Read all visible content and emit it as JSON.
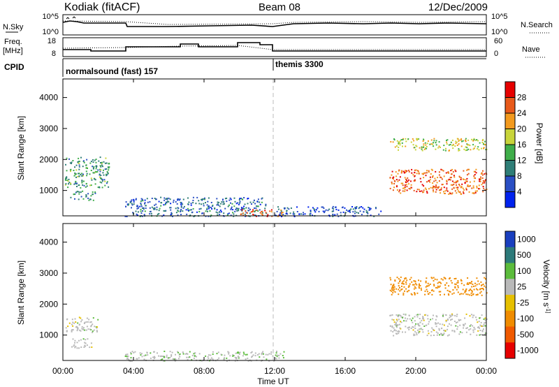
{
  "header": {
    "station": "Kodiak (fitACF)",
    "beam": "Beam 08",
    "date": "12/Dec/2009"
  },
  "noise_panel": {
    "left_label": "N.Sky",
    "right_label": "N.Search",
    "left_ticks": [
      "10^5",
      "10^0"
    ],
    "right_ticks": [
      "10^5",
      "10^0"
    ]
  },
  "freq_panel": {
    "left_label_1": "Freq.",
    "left_label_2": "[MHz]",
    "left_ticks": [
      "18",
      "8"
    ],
    "right_label": "Nave",
    "right_ticks": [
      "60",
      "0"
    ]
  },
  "cpid_panel": {
    "label": "CPID",
    "modes": [
      {
        "name": "normalsound (fast) 157",
        "start": "00:00"
      },
      {
        "name": "themis 3300",
        "start": "12:00"
      }
    ]
  },
  "x_axis": {
    "label": "Time UT",
    "ticks": [
      "00:00",
      "04:00",
      "08:00",
      "12:00",
      "16:00",
      "20:00",
      "00:00"
    ]
  },
  "y_axis": {
    "label": "Slant Range [km]",
    "ticks": [
      "1000",
      "2000",
      "3000",
      "4000"
    ]
  },
  "power_colorbar": {
    "label": "Power [dB]",
    "ticks": [
      "4",
      "8",
      "12",
      "16",
      "20",
      "24",
      "28"
    ],
    "colors": [
      "#0022ee",
      "#2a4fc4",
      "#2f7e77",
      "#3fae4a",
      "#c8d43a",
      "#f39a1e",
      "#e85a1a",
      "#e60000"
    ]
  },
  "velocity_colorbar": {
    "label": "Velocity [m s^-1]",
    "ticks": [
      "1000",
      "500",
      "100",
      "25",
      "-25",
      "-100",
      "-500",
      "-1000"
    ],
    "colors": [
      "#1a3fbf",
      "#2d7a7a",
      "#5cbc3c",
      "#b9b9b9",
      "#e6c000",
      "#f08c00",
      "#f05a00",
      "#e60000"
    ]
  },
  "chart_data": [
    {
      "type": "heatmap",
      "title": "",
      "xlabel": "Time UT",
      "ylabel": "Slant Range [km]",
      "colorbar_label": "Power [dB]",
      "xlim": [
        0,
        24
      ],
      "ylim": [
        180,
        4600
      ],
      "clim": [
        0,
        32
      ],
      "regions": [
        {
          "t": [
            0.1,
            2.6
          ],
          "range": [
            1100,
            2100
          ],
          "value_db": 12
        },
        {
          "t": [
            0.4,
            1.8
          ],
          "range": [
            700,
            1000
          ],
          "value_db": 10
        },
        {
          "t": [
            3.5,
            11.5
          ],
          "range": [
            180,
            800
          ],
          "value_db": 8
        },
        {
          "t": [
            10.0,
            12.5
          ],
          "range": [
            180,
            400
          ],
          "value_db": 26
        },
        {
          "t": [
            12.0,
            18.0
          ],
          "range": [
            180,
            500
          ],
          "value_db": 6
        },
        {
          "t": [
            18.5,
            24.0
          ],
          "range": [
            2300,
            2700
          ],
          "value_db": 18
        },
        {
          "t": [
            18.5,
            24.0
          ],
          "range": [
            900,
            1700
          ],
          "value_db": 25
        }
      ]
    },
    {
      "type": "heatmap",
      "title": "",
      "xlabel": "Time UT",
      "ylabel": "Slant Range [km]",
      "colorbar_label": "Velocity [m s^-1]",
      "xlim": [
        0,
        24
      ],
      "ylim": [
        180,
        4600
      ],
      "clim": [
        -1000,
        1000
      ],
      "regions": [
        {
          "t": [
            0.1,
            2.0
          ],
          "range": [
            1100,
            1600
          ],
          "value_ms": 0
        },
        {
          "t": [
            0.4,
            1.6
          ],
          "range": [
            600,
            900
          ],
          "value_ms": 0
        },
        {
          "t": [
            3.5,
            12.5
          ],
          "range": [
            180,
            500
          ],
          "value_ms": 10
        },
        {
          "t": [
            18.5,
            24.0
          ],
          "range": [
            2300,
            2900
          ],
          "value_ms": -150
        },
        {
          "t": [
            18.5,
            24.0
          ],
          "range": [
            1000,
            1700
          ],
          "value_ms": 0
        }
      ]
    }
  ]
}
